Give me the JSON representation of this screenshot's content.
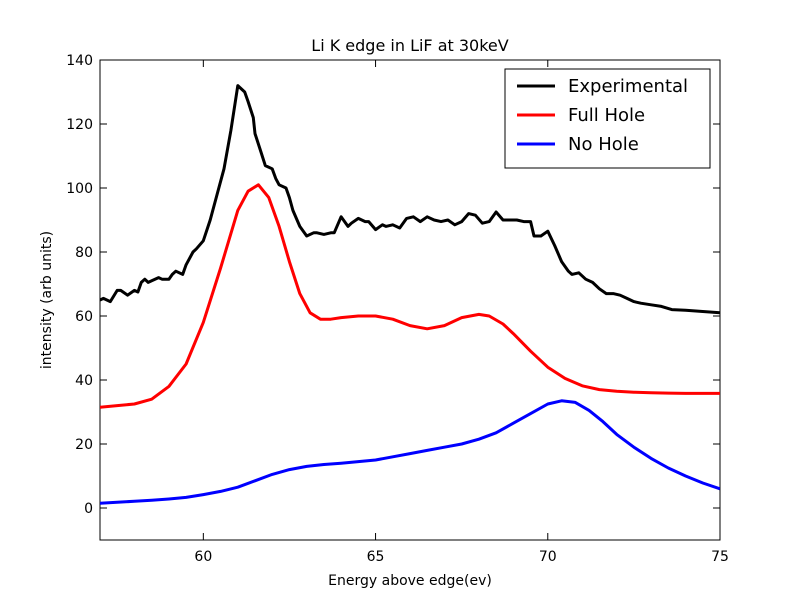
{
  "chart_data": {
    "type": "line",
    "title": "Li K edge in LiF at 30keV",
    "xlabel": "Energy above edge(ev)",
    "ylabel": "intensity (arb units)",
    "xlim": [
      57,
      75
    ],
    "ylim": [
      -10,
      140
    ],
    "xticks": [
      60,
      65,
      70,
      75
    ],
    "yticks": [
      0,
      20,
      40,
      60,
      80,
      100,
      120,
      140
    ],
    "grid": false,
    "legend_position": "top-right",
    "series": [
      {
        "name": "Experimental",
        "color": "#000000",
        "x": [
          57.0,
          57.1,
          57.3,
          57.5,
          57.6,
          57.8,
          58.0,
          58.1,
          58.2,
          58.3,
          58.4,
          58.5,
          58.7,
          58.8,
          59.0,
          59.1,
          59.2,
          59.4,
          59.5,
          59.7,
          59.8,
          60.0,
          60.2,
          60.4,
          60.6,
          60.8,
          61.0,
          61.2,
          61.3,
          61.45,
          61.5,
          61.65,
          61.8,
          62.0,
          62.1,
          62.2,
          62.4,
          62.5,
          62.6,
          62.8,
          63.0,
          63.2,
          63.3,
          63.5,
          63.7,
          63.8,
          64.0,
          64.2,
          64.3,
          64.5,
          64.7,
          64.8,
          65.0,
          65.2,
          65.3,
          65.5,
          65.7,
          65.9,
          66.1,
          66.3,
          66.5,
          66.7,
          66.9,
          67.1,
          67.3,
          67.5,
          67.7,
          67.9,
          68.1,
          68.3,
          68.5,
          68.7,
          68.9,
          69.1,
          69.3,
          69.5,
          69.6,
          69.8,
          70.0,
          70.2,
          70.4,
          70.6,
          70.7,
          70.9,
          71.1,
          71.3,
          71.5,
          71.7,
          71.9,
          72.1,
          72.3,
          72.5,
          72.7,
          73.0,
          73.3,
          73.6,
          74.0,
          74.4,
          74.8,
          75.0
        ],
        "y": [
          65,
          65.5,
          64.5,
          68,
          68,
          66.5,
          68,
          67.5,
          70.5,
          71.5,
          70.5,
          71,
          72,
          71.5,
          71.5,
          73,
          74,
          73,
          76,
          80,
          81,
          83.5,
          90,
          98,
          106,
          118,
          132,
          130,
          127,
          122,
          117,
          112,
          107,
          106,
          103,
          101,
          100,
          97,
          93,
          88,
          85,
          86,
          86,
          85.5,
          86,
          86,
          91,
          88,
          89,
          90.5,
          89.5,
          89.5,
          87,
          88.5,
          88,
          88.5,
          87.5,
          90.5,
          91,
          89.5,
          91,
          90,
          89.5,
          90,
          88.5,
          89.5,
          92,
          91.5,
          89,
          89.5,
          92.5,
          90,
          90,
          90,
          89.5,
          89.5,
          85,
          85,
          86.5,
          82,
          77,
          74,
          73,
          73.5,
          71.5,
          70.5,
          68.5,
          67,
          67,
          66.5,
          65.5,
          64.5,
          64,
          63.5,
          63,
          62,
          61.8,
          61.5,
          61.2,
          61
        ],
        "legend": "Experimental"
      },
      {
        "name": "Full Hole",
        "color": "#ff0000",
        "x": [
          57.0,
          57.5,
          58.0,
          58.5,
          59.0,
          59.5,
          60.0,
          60.5,
          61.0,
          61.3,
          61.6,
          61.9,
          62.2,
          62.5,
          62.8,
          63.1,
          63.4,
          63.7,
          64.0,
          64.5,
          65.0,
          65.5,
          66.0,
          66.5,
          67.0,
          67.5,
          68.0,
          68.3,
          68.7,
          69.0,
          69.5,
          70.0,
          70.5,
          71.0,
          71.5,
          72.0,
          72.5,
          73.0,
          73.5,
          74.0,
          74.5,
          75.0
        ],
        "y": [
          31.5,
          32,
          32.5,
          34,
          38,
          45,
          58,
          75,
          93,
          99,
          101,
          97,
          88,
          77,
          67,
          61,
          59,
          59,
          59.5,
          60,
          60,
          59,
          57,
          56,
          57,
          59.5,
          60.5,
          60,
          57.5,
          54.5,
          49,
          44,
          40.5,
          38.2,
          37,
          36.5,
          36.2,
          36,
          35.9,
          35.8,
          35.8,
          35.8
        ],
        "legend": "Full Hole"
      },
      {
        "name": "No Hole",
        "color": "#0000ff",
        "x": [
          57.0,
          57.5,
          58.0,
          58.5,
          59.0,
          59.5,
          60.0,
          60.5,
          61.0,
          61.5,
          62.0,
          62.5,
          63.0,
          63.5,
          64.0,
          64.5,
          65.0,
          65.5,
          66.0,
          66.5,
          67.0,
          67.5,
          68.0,
          68.5,
          69.0,
          69.5,
          70.0,
          70.4,
          70.8,
          71.2,
          71.6,
          72.0,
          72.5,
          73.0,
          73.5,
          74.0,
          74.5,
          75.0
        ],
        "y": [
          1.5,
          1.8,
          2.1,
          2.4,
          2.8,
          3.3,
          4.2,
          5.2,
          6.5,
          8.5,
          10.5,
          12,
          13,
          13.6,
          14,
          14.5,
          15,
          16,
          17,
          18,
          19,
          20,
          21.5,
          23.5,
          26.5,
          29.5,
          32.5,
          33.5,
          33,
          30.5,
          27,
          23,
          19,
          15.5,
          12.5,
          10,
          7.8,
          6
        ],
        "legend": "No Hole"
      }
    ]
  }
}
